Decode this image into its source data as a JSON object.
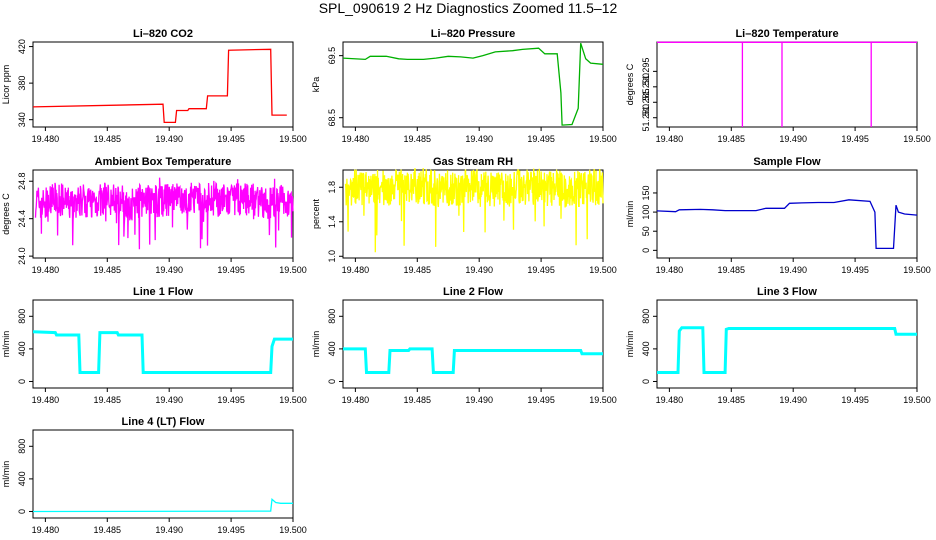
{
  "figure": {
    "title": "SPL_090619  2 Hz Diagnostics Zoomed 11.5–12"
  },
  "chart_data": [
    {
      "type": "line",
      "title": "Li–820 CO2",
      "xlabel": "",
      "ylabel": "Licor ppm",
      "xlim": [
        19.479,
        19.5
      ],
      "ylim": [
        332,
        425
      ],
      "x_ticks": [
        "19.480",
        "19.485",
        "19.490",
        "19.495",
        "19.500"
      ],
      "y_ticks": [
        "340",
        "380",
        "420"
      ],
      "color": "#ff0000",
      "series": [
        {
          "x": [
            19.479,
            19.4895,
            19.4896,
            19.4905,
            19.4906,
            19.4915,
            19.4916,
            19.493,
            19.4931,
            19.4947,
            19.4948,
            19.4982,
            19.4983,
            19.4995
          ],
          "y": [
            354,
            357,
            337,
            337,
            350,
            350,
            352,
            352,
            366,
            366,
            416,
            417,
            345,
            345
          ]
        }
      ]
    },
    {
      "type": "line",
      "title": "Li–820 Pressure",
      "xlabel": "",
      "ylabel": "kPa",
      "xlim": [
        19.479,
        19.5
      ],
      "ylim": [
        68.35,
        69.72
      ],
      "x_ticks": [
        "19.480",
        "19.485",
        "19.490",
        "19.495",
        "19.500"
      ],
      "y_ticks": [
        "68.5",
        "69.5"
      ],
      "color": "#00b000",
      "series": [
        {
          "x": [
            19.479,
            19.4808,
            19.4812,
            19.4825,
            19.4835,
            19.4842,
            19.4855,
            19.4865,
            19.4875,
            19.4885,
            19.4895,
            19.4903,
            19.4913,
            19.4927,
            19.4935,
            19.4948,
            19.4953,
            19.4963,
            19.4966,
            19.4967,
            19.4975,
            19.498,
            19.4982,
            19.4986,
            19.499,
            19.5
          ],
          "y": [
            69.46,
            69.44,
            69.49,
            69.49,
            69.45,
            69.44,
            69.44,
            69.46,
            69.49,
            69.48,
            69.46,
            69.5,
            69.56,
            69.58,
            69.6,
            69.62,
            69.53,
            69.53,
            68.9,
            68.38,
            68.39,
            68.65,
            69.7,
            69.45,
            69.38,
            69.36
          ]
        }
      ]
    },
    {
      "type": "line",
      "title": "Li–820 Temperature",
      "xlabel": "",
      "ylabel": "degrees C",
      "xlim": [
        19.479,
        19.5
      ],
      "ylim": [
        51.277,
        51.3045
      ],
      "x_ticks": [
        "19.480",
        "19.485",
        "19.490",
        "19.495",
        "19.500"
      ],
      "y_ticks": [
        "51.280",
        "51.285",
        "51.290",
        "51.295"
      ],
      "color": "#ff00ff",
      "series": [
        {
          "x": [
            19.479,
            19.4859,
            19.4859,
            19.4859,
            19.4891,
            19.4891,
            19.4891,
            19.4963,
            19.4963,
            19.4963,
            19.5
          ],
          "y": [
            51.3044,
            51.3044,
            51.277,
            51.3044,
            51.3044,
            51.277,
            51.3044,
            51.3044,
            51.277,
            51.3044,
            51.3044
          ]
        }
      ]
    },
    {
      "type": "line",
      "title": "Ambient Box Temperature",
      "xlabel": "",
      "ylabel": "degrees C",
      "xlim": [
        19.479,
        19.5
      ],
      "ylim": [
        23.98,
        24.92
      ],
      "x_ticks": [
        "19.480",
        "19.485",
        "19.490",
        "19.495",
        "19.500"
      ],
      "y_ticks": [
        "24.0",
        "24.4",
        "24.8"
      ],
      "color": "#ff00ff",
      "series": [
        {
          "x": [
            19.479,
            19.48,
            19.481,
            19.482,
            19.483,
            19.484,
            19.485,
            19.486,
            19.487,
            19.488,
            19.489,
            19.49,
            19.491,
            19.492,
            19.493,
            19.494,
            19.495,
            19.496,
            19.497,
            19.498,
            19.499,
            19.5
          ],
          "y": [
            24.6,
            24.55,
            24.62,
            24.55,
            24.6,
            24.58,
            24.62,
            24.6,
            24.55,
            24.62,
            24.58,
            24.6,
            24.6,
            24.58,
            24.62,
            24.6,
            24.58,
            24.62,
            24.6,
            24.55,
            24.6,
            24.58
          ],
          "range": [
            24.05,
            24.85
          ]
        }
      ]
    },
    {
      "type": "line",
      "title": "Gas Stream RH",
      "xlabel": "",
      "ylabel": "percent",
      "xlim": [
        19.479,
        19.5
      ],
      "ylim": [
        0.98,
        2.0
      ],
      "x_ticks": [
        "19.480",
        "19.485",
        "19.490",
        "19.495",
        "19.500"
      ],
      "y_ticks": [
        "1.0",
        "1.4",
        "1.8"
      ],
      "color": "#ffff00",
      "series": [
        {
          "x": [
            19.479,
            19.481,
            19.483,
            19.485,
            19.487,
            19.489,
            19.491,
            19.493,
            19.495,
            19.497,
            19.499,
            19.5
          ],
          "y": [
            1.8,
            1.78,
            1.8,
            1.82,
            1.78,
            1.8,
            1.78,
            1.82,
            1.8,
            1.78,
            1.8,
            1.8
          ],
          "range": [
            1.02,
            1.98
          ]
        }
      ]
    },
    {
      "type": "line",
      "title": "Sample Flow",
      "xlabel": "",
      "ylabel": "ml/min",
      "xlim": [
        19.479,
        19.5
      ],
      "ylim": [
        -20,
        210
      ],
      "x_ticks": [
        "19.480",
        "19.485",
        "19.490",
        "19.495",
        "19.500"
      ],
      "y_ticks": [
        "0",
        "50",
        "100",
        "150"
      ],
      "color": "#0000cc",
      "series": [
        {
          "x": [
            19.479,
            19.4805,
            19.4808,
            19.4825,
            19.4835,
            19.4845,
            19.4858,
            19.487,
            19.4878,
            19.4885,
            19.4893,
            19.4897,
            19.4907,
            19.492,
            19.4933,
            19.4945,
            19.4962,
            19.4966,
            19.4967,
            19.4981,
            19.4983,
            19.4985,
            19.499,
            19.5
          ],
          "y": [
            103,
            101,
            106,
            107,
            106,
            104,
            104,
            104,
            110,
            110,
            110,
            123,
            124,
            125,
            125,
            132,
            128,
            100,
            5,
            5,
            118,
            100,
            95,
            92
          ]
        }
      ]
    },
    {
      "type": "line",
      "title": "Line 1 Flow",
      "xlabel": "",
      "ylabel": "ml/min",
      "xlim": [
        19.479,
        19.5
      ],
      "ylim": [
        -80,
        1000
      ],
      "x_ticks": [
        "19.480",
        "19.485",
        "19.490",
        "19.495",
        "19.500"
      ],
      "y_ticks": [
        "0",
        "400",
        "800"
      ],
      "color": "#00ffff",
      "series": [
        {
          "x": [
            19.479,
            19.4808,
            19.4809,
            19.4827,
            19.4828,
            19.4843,
            19.4844,
            19.4858,
            19.4859,
            19.4878,
            19.4879,
            19.4982,
            19.4983,
            19.4985,
            19.5
          ],
          "y": [
            610,
            600,
            570,
            570,
            110,
            110,
            600,
            600,
            570,
            570,
            110,
            110,
            430,
            520,
            520
          ]
        }
      ]
    },
    {
      "type": "line",
      "title": "Line 2 Flow",
      "xlabel": "",
      "ylabel": "ml/min",
      "xlim": [
        19.479,
        19.5
      ],
      "ylim": [
        -80,
        1000
      ],
      "x_ticks": [
        "19.480",
        "19.485",
        "19.490",
        "19.495",
        "19.500"
      ],
      "y_ticks": [
        "0",
        "400",
        "800"
      ],
      "color": "#00ffff",
      "series": [
        {
          "x": [
            19.479,
            19.4808,
            19.4809,
            19.4827,
            19.4828,
            19.4843,
            19.4844,
            19.4862,
            19.4863,
            19.4879,
            19.488,
            19.4982,
            19.4983,
            19.5
          ],
          "y": [
            400,
            400,
            110,
            110,
            380,
            380,
            400,
            400,
            110,
            110,
            380,
            380,
            340,
            340
          ]
        }
      ]
    },
    {
      "type": "line",
      "title": "Line 3 Flow",
      "xlabel": "",
      "ylabel": "ml/min",
      "xlim": [
        19.479,
        19.5
      ],
      "ylim": [
        -80,
        1000
      ],
      "x_ticks": [
        "19.480",
        "19.485",
        "19.490",
        "19.495",
        "19.500"
      ],
      "y_ticks": [
        "0",
        "400",
        "800"
      ],
      "color": "#00ffff",
      "series": [
        {
          "x": [
            19.479,
            19.4807,
            19.4808,
            19.481,
            19.4827,
            19.4828,
            19.4845,
            19.4846,
            19.4848,
            19.4982,
            19.4983,
            19.5
          ],
          "y": [
            110,
            110,
            620,
            660,
            660,
            110,
            110,
            640,
            650,
            650,
            580,
            580
          ]
        }
      ]
    },
    {
      "type": "line",
      "title": "Line 4 (LT) Flow",
      "xlabel": "",
      "ylabel": "ml/min",
      "xlim": [
        19.479,
        19.5
      ],
      "ylim": [
        -80,
        1000
      ],
      "x_ticks": [
        "19.480",
        "19.485",
        "19.490",
        "19.495",
        "19.500"
      ],
      "y_ticks": [
        "0",
        "400",
        "800"
      ],
      "color": "#00ffff",
      "series": [
        {
          "x": [
            19.479,
            19.4982,
            19.4983,
            19.4986,
            19.499,
            19.5
          ],
          "y": [
            0,
            5,
            150,
            110,
            100,
            100
          ]
        }
      ]
    }
  ]
}
